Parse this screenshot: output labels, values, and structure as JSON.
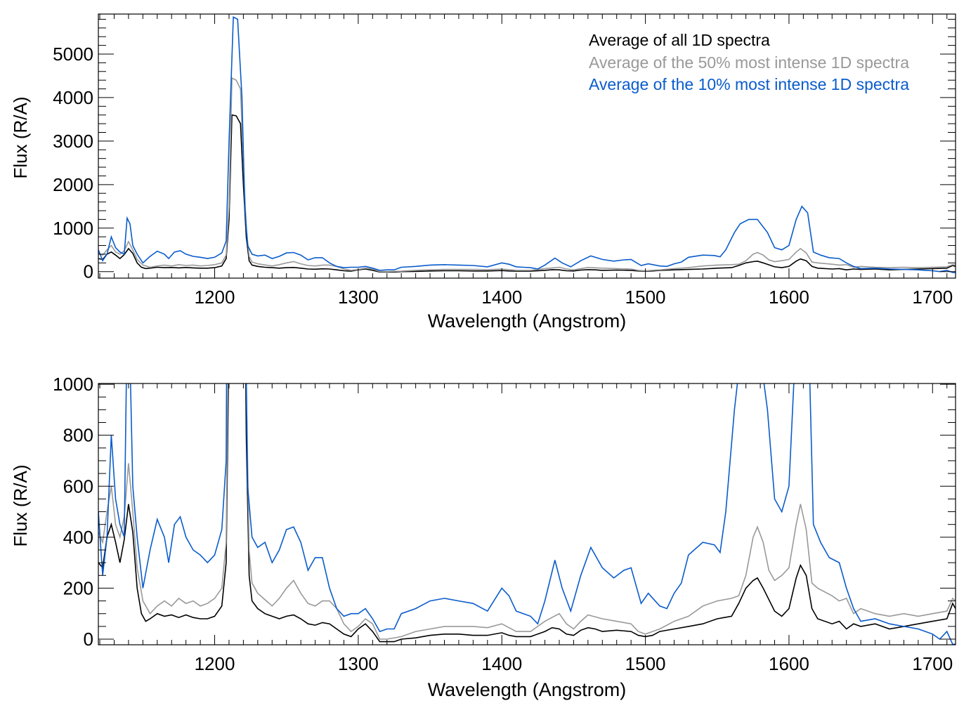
{
  "colors": {
    "all": "#000000",
    "p50": "#999999",
    "p10": "#0a5ccc"
  },
  "legend": [
    {
      "label": "Average of all 1D spectra",
      "color": "#000000"
    },
    {
      "label": "Average of the 50% most intense 1D spectra",
      "color": "#999999"
    },
    {
      "label": "Average of the 10% most intense 1D spectra",
      "color": "#0a5ccc"
    }
  ],
  "chart_data": [
    {
      "type": "line",
      "title": "",
      "xlabel": "Wavelength (Angstrom)",
      "ylabel": "Flux (R/A)",
      "xlim": [
        1119,
        1716
      ],
      "ylim": [
        -150,
        5920
      ],
      "xticks": [
        1200,
        1300,
        1400,
        1500,
        1600,
        1700
      ],
      "yticks": [
        0,
        1000,
        2000,
        3000,
        4000,
        5000
      ],
      "legend_placement": "top-right",
      "series_ref": "shared"
    },
    {
      "type": "line",
      "title": "",
      "xlabel": "Wavelength (Angstrom)",
      "ylabel": "Flux (R/A)",
      "xlim": [
        1119,
        1716
      ],
      "ylim": [
        -22,
        1003
      ],
      "xticks": [
        1200,
        1300,
        1400,
        1500,
        1600,
        1700
      ],
      "yticks": [
        0,
        200,
        400,
        600,
        800,
        1000
      ],
      "series_ref": "shared"
    }
  ],
  "series": [
    {
      "name": "Average of all 1D spectra",
      "color": "#000000",
      "x": [
        1119,
        1122,
        1125,
        1128,
        1131,
        1134,
        1137,
        1140,
        1143,
        1146,
        1149,
        1152,
        1155,
        1160,
        1165,
        1170,
        1175,
        1180,
        1185,
        1190,
        1195,
        1200,
        1205,
        1208,
        1210,
        1212,
        1215,
        1218,
        1220,
        1222,
        1224,
        1226,
        1230,
        1235,
        1240,
        1245,
        1250,
        1255,
        1260,
        1265,
        1270,
        1275,
        1280,
        1285,
        1290,
        1295,
        1300,
        1305,
        1310,
        1315,
        1320,
        1325,
        1330,
        1340,
        1350,
        1360,
        1370,
        1380,
        1390,
        1400,
        1405,
        1410,
        1420,
        1430,
        1435,
        1440,
        1445,
        1450,
        1455,
        1460,
        1465,
        1470,
        1480,
        1490,
        1495,
        1500,
        1505,
        1510,
        1520,
        1530,
        1540,
        1550,
        1555,
        1560,
        1565,
        1570,
        1575,
        1578,
        1582,
        1590,
        1595,
        1600,
        1605,
        1608,
        1612,
        1616,
        1620,
        1630,
        1635,
        1640,
        1645,
        1650,
        1660,
        1670,
        1680,
        1690,
        1700,
        1710,
        1714,
        1716
      ],
      "y": [
        300,
        280,
        400,
        450,
        380,
        300,
        390,
        530,
        420,
        200,
        100,
        70,
        80,
        100,
        90,
        95,
        85,
        95,
        85,
        80,
        80,
        90,
        130,
        300,
        1200,
        3600,
        3580,
        3400,
        2000,
        800,
        250,
        150,
        120,
        100,
        90,
        80,
        90,
        95,
        80,
        60,
        55,
        65,
        60,
        40,
        20,
        10,
        40,
        60,
        30,
        -10,
        -10,
        -10,
        0,
        5,
        15,
        20,
        20,
        15,
        15,
        25,
        15,
        10,
        10,
        30,
        45,
        40,
        20,
        15,
        35,
        45,
        40,
        30,
        35,
        30,
        15,
        10,
        15,
        30,
        40,
        50,
        60,
        80,
        85,
        90,
        140,
        200,
        230,
        240,
        200,
        110,
        90,
        120,
        240,
        290,
        250,
        120,
        80,
        60,
        70,
        40,
        60,
        50,
        60,
        40,
        50,
        60,
        70,
        80,
        140,
        120
      ]
    },
    {
      "name": "Average of the 50% most intense 1D spectra",
      "color": "#999999",
      "x": [
        1119,
        1122,
        1125,
        1128,
        1131,
        1134,
        1137,
        1140,
        1143,
        1146,
        1150,
        1155,
        1160,
        1165,
        1170,
        1175,
        1180,
        1185,
        1190,
        1195,
        1200,
        1205,
        1208,
        1210,
        1212,
        1215,
        1218,
        1220,
        1222,
        1224,
        1226,
        1230,
        1240,
        1245,
        1250,
        1255,
        1260,
        1265,
        1270,
        1275,
        1280,
        1285,
        1290,
        1295,
        1300,
        1305,
        1310,
        1315,
        1320,
        1330,
        1340,
        1350,
        1360,
        1370,
        1380,
        1390,
        1400,
        1405,
        1410,
        1420,
        1430,
        1440,
        1445,
        1450,
        1455,
        1460,
        1470,
        1480,
        1490,
        1495,
        1500,
        1510,
        1520,
        1530,
        1540,
        1550,
        1560,
        1565,
        1570,
        1575,
        1578,
        1582,
        1586,
        1590,
        1595,
        1600,
        1605,
        1608,
        1612,
        1616,
        1620,
        1630,
        1635,
        1640,
        1645,
        1650,
        1660,
        1670,
        1680,
        1690,
        1700,
        1710,
        1714,
        1716
      ],
      "y": [
        420,
        380,
        500,
        600,
        450,
        400,
        480,
        690,
        500,
        280,
        150,
        100,
        130,
        150,
        130,
        160,
        140,
        150,
        130,
        140,
        160,
        200,
        380,
        1500,
        4450,
        4400,
        4200,
        2500,
        1000,
        350,
        220,
        180,
        130,
        160,
        200,
        230,
        180,
        140,
        130,
        150,
        150,
        120,
        60,
        30,
        50,
        80,
        60,
        0,
        0,
        10,
        30,
        40,
        50,
        50,
        50,
        45,
        60,
        45,
        30,
        30,
        70,
        100,
        60,
        40,
        70,
        95,
        80,
        70,
        60,
        30,
        20,
        40,
        70,
        90,
        130,
        150,
        160,
        170,
        250,
        400,
        440,
        380,
        270,
        230,
        250,
        280,
        450,
        530,
        430,
        220,
        200,
        170,
        150,
        160,
        100,
        120,
        100,
        90,
        100,
        90,
        100,
        110,
        160,
        150
      ]
    },
    {
      "name": "Average of the 10% most intense 1D spectra",
      "color": "#0a5ccc",
      "x": [
        1119,
        1122,
        1125,
        1128,
        1131,
        1134,
        1137,
        1139,
        1141,
        1143,
        1146,
        1150,
        1155,
        1160,
        1165,
        1168,
        1172,
        1176,
        1180,
        1185,
        1190,
        1195,
        1200,
        1205,
        1208,
        1210,
        1213,
        1216,
        1219,
        1221,
        1223,
        1226,
        1230,
        1235,
        1240,
        1245,
        1250,
        1255,
        1260,
        1265,
        1270,
        1275,
        1280,
        1285,
        1290,
        1295,
        1300,
        1305,
        1310,
        1315,
        1320,
        1325,
        1330,
        1340,
        1350,
        1360,
        1370,
        1380,
        1390,
        1400,
        1405,
        1410,
        1415,
        1420,
        1425,
        1430,
        1437,
        1442,
        1448,
        1455,
        1462,
        1470,
        1478,
        1485,
        1490,
        1497,
        1502,
        1510,
        1515,
        1520,
        1525,
        1530,
        1540,
        1548,
        1552,
        1556,
        1562,
        1566,
        1572,
        1578,
        1585,
        1590,
        1595,
        1600,
        1605,
        1609,
        1613,
        1617,
        1622,
        1628,
        1635,
        1640,
        1645,
        1650,
        1660,
        1670,
        1680,
        1690,
        1695,
        1700,
        1705,
        1710,
        1714,
        1716
      ],
      "y": [
        500,
        250,
        400,
        800,
        550,
        450,
        400,
        1230,
        1100,
        600,
        400,
        200,
        350,
        470,
        400,
        300,
        450,
        480,
        400,
        350,
        330,
        300,
        330,
        430,
        700,
        3000,
        5850,
        5800,
        4000,
        1500,
        600,
        400,
        360,
        380,
        300,
        350,
        430,
        440,
        380,
        270,
        320,
        320,
        200,
        120,
        90,
        100,
        100,
        120,
        80,
        30,
        40,
        40,
        100,
        120,
        150,
        160,
        150,
        140,
        110,
        200,
        170,
        110,
        100,
        90,
        60,
        150,
        310,
        200,
        110,
        250,
        360,
        280,
        240,
        270,
        280,
        140,
        180,
        130,
        120,
        180,
        220,
        330,
        380,
        370,
        340,
        500,
        900,
        1100,
        1200,
        1200,
        900,
        550,
        500,
        600,
        1200,
        1500,
        1350,
        450,
        380,
        320,
        300,
        200,
        120,
        70,
        80,
        60,
        50,
        40,
        30,
        20,
        0,
        30,
        -20,
        -20
      ]
    }
  ]
}
